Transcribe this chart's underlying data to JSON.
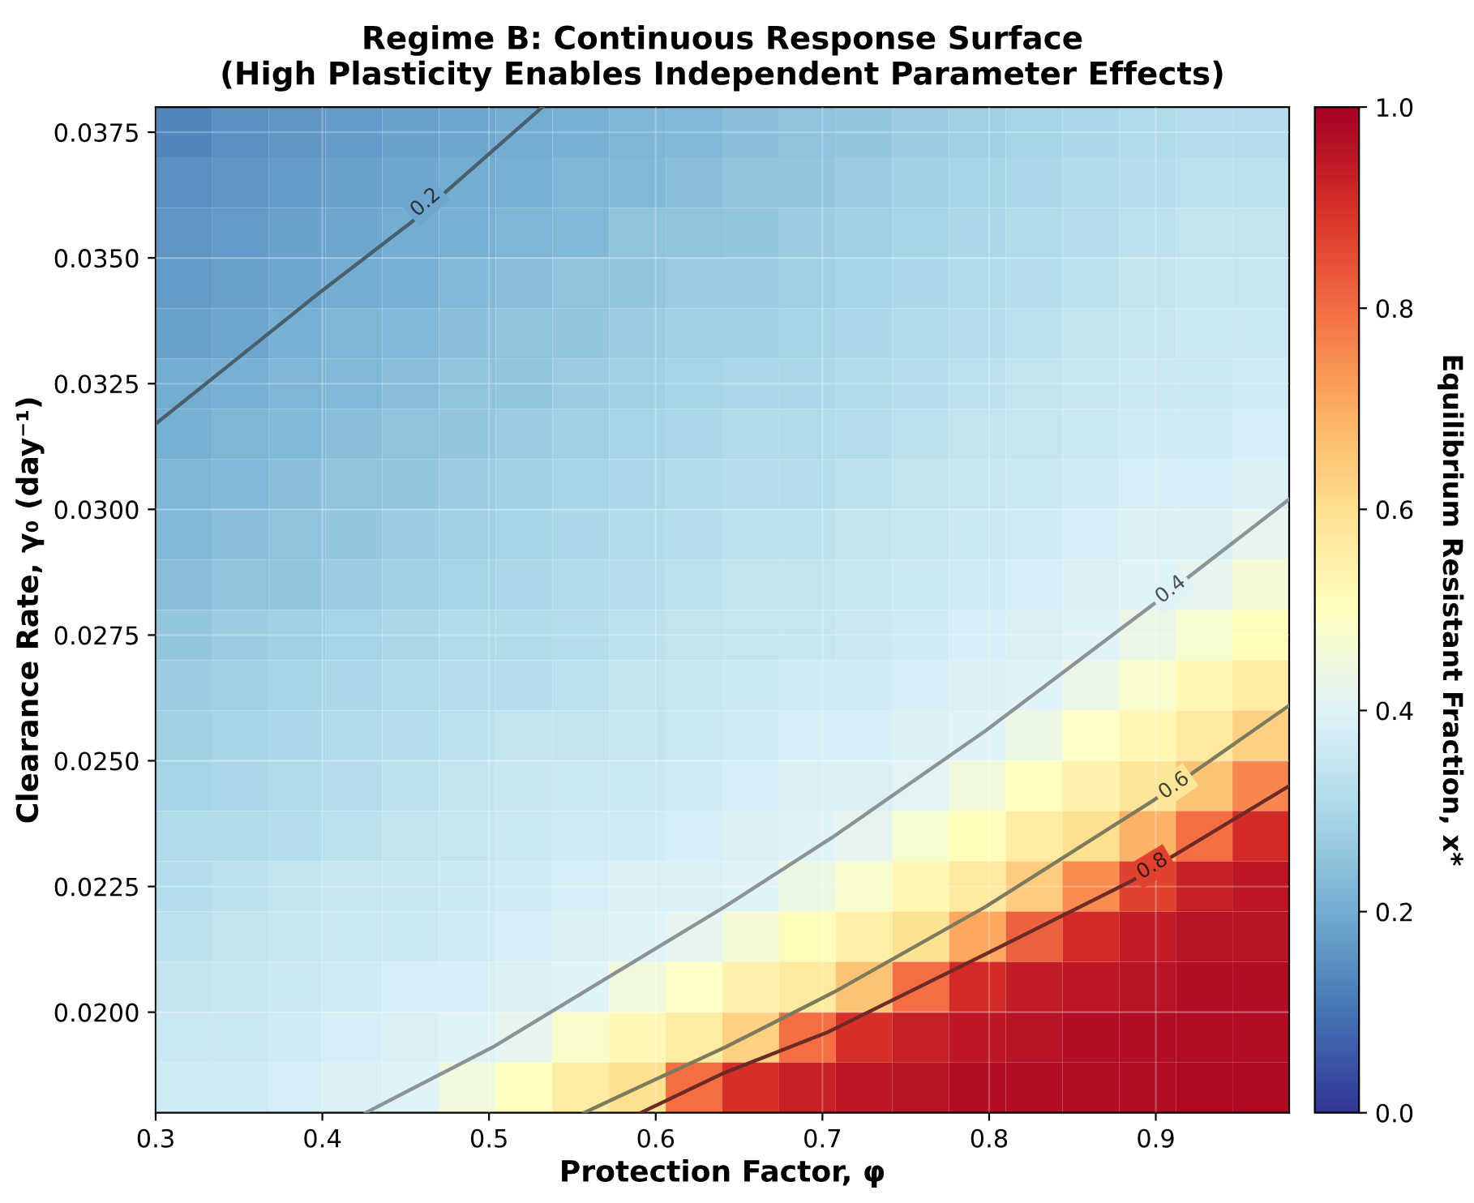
{
  "chart_data": {
    "type": "heatmap",
    "title": "Regime B: Continuous Response Surface\n(High Plasticity Enables Independent Parameter Effects)",
    "xlabel": "Protection Factor, φ",
    "ylabel": "Clearance Rate, γ₀ (day⁻¹)",
    "clabel": "Equilibrium Resistant Fraction, x*",
    "xlim": [
      0.3,
      0.98
    ],
    "ylim": [
      0.018,
      0.038
    ],
    "xticks": [
      0.3,
      0.4,
      0.5,
      0.6,
      0.7,
      0.8,
      0.9
    ],
    "yticks": [
      {
        "value": 0.02,
        "label": "0.0200"
      },
      {
        "value": 0.0225,
        "label": "0.0225"
      },
      {
        "value": 0.025,
        "label": "0.0250"
      },
      {
        "value": 0.0275,
        "label": "0.0275"
      },
      {
        "value": 0.03,
        "label": "0.0300"
      },
      {
        "value": 0.0325,
        "label": "0.0325"
      },
      {
        "value": 0.035,
        "label": "0.0350"
      },
      {
        "value": 0.0375,
        "label": "0.0375"
      }
    ],
    "clim": [
      0,
      1
    ],
    "cticks": [
      {
        "value": 0,
        "label": "0.0"
      },
      0.2,
      0.4,
      0.6,
      0.8,
      {
        "value": 1,
        "label": "1.0"
      }
    ],
    "grid": true,
    "cells": [
      [
        0.13,
        0.15,
        0.16,
        0.17,
        0.18,
        0.19,
        0.2,
        0.21,
        0.22,
        0.23,
        0.24,
        0.25,
        0.26,
        0.27,
        0.28,
        0.29,
        0.3,
        0.31,
        0.32,
        0.32
      ],
      [
        0.15,
        0.16,
        0.17,
        0.18,
        0.19,
        0.2,
        0.21,
        0.22,
        0.23,
        0.24,
        0.25,
        0.26,
        0.27,
        0.28,
        0.29,
        0.3,
        0.31,
        0.32,
        0.33,
        0.33
      ],
      [
        0.16,
        0.17,
        0.18,
        0.19,
        0.2,
        0.21,
        0.22,
        0.23,
        0.25,
        0.25,
        0.26,
        0.27,
        0.28,
        0.29,
        0.3,
        0.31,
        0.32,
        0.33,
        0.34,
        0.34
      ],
      [
        0.17,
        0.18,
        0.19,
        0.2,
        0.21,
        0.23,
        0.24,
        0.25,
        0.26,
        0.27,
        0.27,
        0.28,
        0.29,
        0.3,
        0.31,
        0.32,
        0.33,
        0.34,
        0.35,
        0.35
      ],
      [
        0.18,
        0.19,
        0.21,
        0.22,
        0.23,
        0.24,
        0.25,
        0.26,
        0.27,
        0.28,
        0.28,
        0.29,
        0.3,
        0.31,
        0.32,
        0.33,
        0.34,
        0.35,
        0.36,
        0.36
      ],
      [
        0.2,
        0.21,
        0.22,
        0.23,
        0.24,
        0.25,
        0.26,
        0.27,
        0.28,
        0.29,
        0.3,
        0.3,
        0.31,
        0.32,
        0.33,
        0.34,
        0.35,
        0.36,
        0.36,
        0.37
      ],
      [
        0.21,
        0.22,
        0.23,
        0.24,
        0.25,
        0.26,
        0.27,
        0.28,
        0.29,
        0.3,
        0.31,
        0.31,
        0.32,
        0.33,
        0.34,
        0.35,
        0.36,
        0.37,
        0.37,
        0.38
      ],
      [
        0.22,
        0.23,
        0.24,
        0.25,
        0.26,
        0.27,
        0.28,
        0.29,
        0.3,
        0.31,
        0.32,
        0.32,
        0.33,
        0.34,
        0.35,
        0.36,
        0.37,
        0.38,
        0.38,
        0.39
      ],
      [
        0.23,
        0.24,
        0.25,
        0.26,
        0.27,
        0.28,
        0.29,
        0.3,
        0.31,
        0.32,
        0.33,
        0.33,
        0.34,
        0.35,
        0.36,
        0.37,
        0.38,
        0.39,
        0.39,
        0.42
      ],
      [
        0.24,
        0.25,
        0.26,
        0.27,
        0.28,
        0.29,
        0.3,
        0.31,
        0.32,
        0.33,
        0.34,
        0.34,
        0.35,
        0.36,
        0.37,
        0.38,
        0.39,
        0.4,
        0.42,
        0.46
      ],
      [
        0.26,
        0.27,
        0.28,
        0.29,
        0.3,
        0.31,
        0.31,
        0.32,
        0.33,
        0.34,
        0.35,
        0.35,
        0.36,
        0.37,
        0.38,
        0.39,
        0.4,
        0.43,
        0.47,
        0.51
      ],
      [
        0.27,
        0.28,
        0.29,
        0.3,
        0.31,
        0.32,
        0.32,
        0.33,
        0.34,
        0.35,
        0.36,
        0.37,
        0.37,
        0.38,
        0.39,
        0.4,
        0.43,
        0.48,
        0.52,
        0.56
      ],
      [
        0.28,
        0.29,
        0.3,
        0.31,
        0.32,
        0.33,
        0.34,
        0.34,
        0.35,
        0.36,
        0.37,
        0.38,
        0.38,
        0.39,
        0.4,
        0.44,
        0.49,
        0.53,
        0.57,
        0.63
      ],
      [
        0.29,
        0.3,
        0.31,
        0.32,
        0.33,
        0.34,
        0.35,
        0.36,
        0.36,
        0.37,
        0.38,
        0.39,
        0.39,
        0.41,
        0.45,
        0.5,
        0.54,
        0.58,
        0.66,
        0.76
      ],
      [
        0.31,
        0.31,
        0.32,
        0.33,
        0.34,
        0.35,
        0.36,
        0.37,
        0.37,
        0.38,
        0.39,
        0.4,
        0.42,
        0.47,
        0.51,
        0.56,
        0.6,
        0.69,
        0.8,
        0.91
      ],
      [
        0.32,
        0.33,
        0.34,
        0.35,
        0.35,
        0.36,
        0.37,
        0.38,
        0.39,
        0.39,
        0.4,
        0.44,
        0.48,
        0.53,
        0.57,
        0.64,
        0.75,
        0.87,
        0.93,
        0.95
      ],
      [
        0.33,
        0.34,
        0.35,
        0.36,
        0.36,
        0.37,
        0.38,
        0.39,
        0.4,
        0.42,
        0.46,
        0.51,
        0.55,
        0.59,
        0.71,
        0.82,
        0.91,
        0.94,
        0.96,
        0.96
      ],
      [
        0.34,
        0.35,
        0.36,
        0.37,
        0.38,
        0.38,
        0.39,
        0.4,
        0.45,
        0.49,
        0.54,
        0.57,
        0.66,
        0.8,
        0.91,
        0.94,
        0.95,
        0.96,
        0.97,
        0.97
      ],
      [
        0.36,
        0.36,
        0.37,
        0.38,
        0.39,
        0.4,
        0.42,
        0.48,
        0.52,
        0.56,
        0.63,
        0.8,
        0.9,
        0.93,
        0.95,
        0.96,
        0.97,
        0.97,
        0.97,
        0.97
      ],
      [
        0.37,
        0.37,
        0.38,
        0.39,
        0.4,
        0.45,
        0.5,
        0.56,
        0.6,
        0.8,
        0.9,
        0.93,
        0.95,
        0.96,
        0.97,
        0.97,
        0.97,
        0.97,
        0.98,
        0.98
      ]
    ],
    "series": [
      {
        "type": "line",
        "color": "#4a5f6e",
        "x": [
          0.3,
          0.398,
          0.453,
          0.532
        ],
        "values": [
          0.0317,
          0.0343,
          0.0357,
          0.038
        ]
      },
      {
        "type": "line",
        "color": "#8a9496",
        "x": [
          0.426,
          0.502,
          0.6415,
          0.707,
          0.798,
          0.898,
          0.98
        ],
        "values": [
          0.018,
          0.0193,
          0.0221,
          0.0235,
          0.0256,
          0.0281,
          0.0302
        ]
      },
      {
        "type": "line",
        "color": "#7d7a5e",
        "x": [
          0.557,
          0.586,
          0.6415,
          0.707,
          0.798,
          0.898,
          0.98
        ],
        "values": [
          0.018,
          0.01845,
          0.0193,
          0.0204,
          0.0221,
          0.0242,
          0.0261
        ]
      },
      {
        "type": "line",
        "color": "#6e2a26",
        "x": [
          0.591,
          0.6415,
          0.703,
          0.8005,
          0.885,
          0.98
        ],
        "values": [
          0.018,
          0.0188,
          0.0196,
          0.0212,
          0.0226,
          0.0245
        ]
      }
    ],
    "annotations": [
      {
        "text": "0.2",
        "x": 0.462,
        "y": 0.0361
      },
      {
        "text": "0.4",
        "x": 0.909,
        "y": 0.0284
      },
      {
        "text": "0.6",
        "x": 0.911,
        "y": 0.0245
      },
      {
        "text": "0.8",
        "x": 0.898,
        "y": 0.0229
      }
    ]
  }
}
